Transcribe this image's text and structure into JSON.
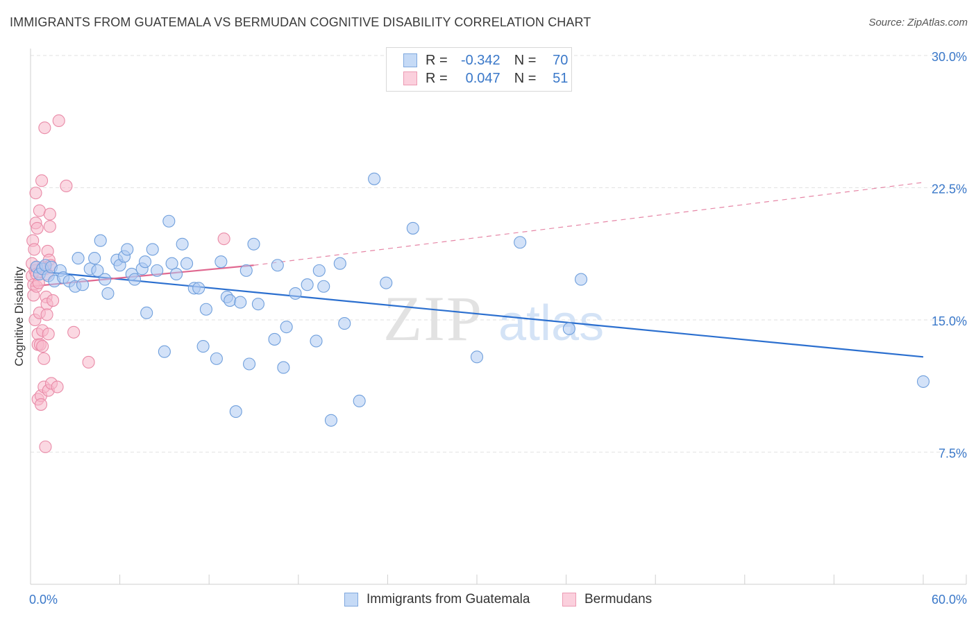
{
  "header": {
    "title": "IMMIGRANTS FROM GUATEMALA VS BERMUDAN COGNITIVE DISABILITY CORRELATION CHART",
    "source": "Source: ZipAtlas.com"
  },
  "watermark": {
    "part1": "ZIP",
    "part2": "atlas"
  },
  "legend": {
    "rows": [
      {
        "r_label": "R =",
        "r_value": "-0.342",
        "n_label": "N =",
        "n_value": "70",
        "color": "#aecbf2"
      },
      {
        "r_label": "R =",
        "r_value": "0.047",
        "n_label": "N =",
        "n_value": "51",
        "color": "#f7b8cb"
      }
    ]
  },
  "colors": {
    "blue_fill": "#aecbf2",
    "blue_stroke": "#6f9fdc",
    "blue_line": "#2b6fcf",
    "pink_fill": "#f7b8cb",
    "pink_stroke": "#e98aa7",
    "pink_line": "#e06890",
    "tick_label": "#3a78c9",
    "grid": "#e2e2e2"
  },
  "chart_data": {
    "type": "scatter",
    "xlabel": "",
    "ylabel": "Cognitive Disability",
    "xlim": [
      0,
      60
    ],
    "ylim": [
      0,
      30
    ],
    "x_tick_labels": [
      "0.0%",
      "60.0%"
    ],
    "y_ticks": [
      7.5,
      15.0,
      22.5,
      30.0
    ],
    "y_tick_labels": [
      "7.5%",
      "15.0%",
      "22.5%",
      "30.0%"
    ],
    "grid": true,
    "legend_position": "top-center",
    "series": [
      {
        "name": "Immigrants from Guatemala",
        "color": "#aecbf2",
        "trend": {
          "x": [
            0,
            60
          ],
          "y": [
            17.8,
            12.9
          ],
          "style": "solid"
        },
        "points": [
          [
            0.4,
            18.0
          ],
          [
            0.6,
            17.6
          ],
          [
            0.8,
            17.9
          ],
          [
            1.0,
            18.1
          ],
          [
            1.2,
            17.5
          ],
          [
            1.4,
            18.0
          ],
          [
            1.6,
            17.2
          ],
          [
            2.0,
            17.8
          ],
          [
            2.2,
            17.4
          ],
          [
            2.6,
            17.2
          ],
          [
            3.0,
            16.9
          ],
          [
            3.2,
            18.5
          ],
          [
            3.5,
            17.0
          ],
          [
            4.0,
            17.9
          ],
          [
            4.3,
            18.5
          ],
          [
            4.5,
            17.8
          ],
          [
            4.7,
            19.5
          ],
          [
            5.0,
            17.3
          ],
          [
            5.2,
            16.5
          ],
          [
            5.8,
            18.4
          ],
          [
            6.0,
            18.1
          ],
          [
            6.3,
            18.6
          ],
          [
            6.5,
            19.0
          ],
          [
            6.8,
            17.6
          ],
          [
            7.0,
            17.3
          ],
          [
            7.5,
            17.9
          ],
          [
            7.7,
            18.3
          ],
          [
            7.8,
            15.4
          ],
          [
            8.2,
            19.0
          ],
          [
            8.5,
            17.8
          ],
          [
            9.0,
            13.2
          ],
          [
            9.3,
            20.6
          ],
          [
            9.5,
            18.2
          ],
          [
            9.8,
            17.6
          ],
          [
            10.2,
            19.3
          ],
          [
            10.5,
            18.2
          ],
          [
            11.0,
            16.8
          ],
          [
            11.3,
            16.8
          ],
          [
            11.6,
            13.5
          ],
          [
            11.8,
            15.6
          ],
          [
            12.5,
            12.8
          ],
          [
            12.8,
            18.3
          ],
          [
            13.2,
            16.3
          ],
          [
            13.4,
            16.1
          ],
          [
            13.8,
            9.8
          ],
          [
            14.1,
            16.0
          ],
          [
            14.5,
            17.8
          ],
          [
            14.7,
            12.5
          ],
          [
            15.0,
            19.3
          ],
          [
            15.3,
            15.9
          ],
          [
            16.4,
            13.9
          ],
          [
            16.6,
            18.1
          ],
          [
            17.0,
            12.3
          ],
          [
            17.2,
            14.6
          ],
          [
            17.8,
            16.5
          ],
          [
            18.6,
            17.0
          ],
          [
            19.2,
            13.8
          ],
          [
            19.4,
            17.8
          ],
          [
            19.7,
            16.9
          ],
          [
            20.2,
            9.3
          ],
          [
            20.8,
            18.2
          ],
          [
            21.1,
            14.8
          ],
          [
            22.1,
            10.4
          ],
          [
            23.1,
            23.0
          ],
          [
            23.9,
            17.1
          ],
          [
            25.7,
            20.2
          ],
          [
            30.0,
            12.9
          ],
          [
            32.9,
            19.4
          ],
          [
            36.2,
            14.5
          ],
          [
            37.0,
            17.3
          ],
          [
            60.0,
            11.5
          ]
        ]
      },
      {
        "name": "Bermudans",
        "color": "#f7b8cb",
        "trend": {
          "x": [
            0,
            15
          ],
          "y": [
            16.9,
            18.1
          ],
          "style": "solid",
          "extended_to": [
            60,
            22.8
          ],
          "extension_style": "dashed"
        },
        "points": [
          [
            0.1,
            17.5
          ],
          [
            0.1,
            18.2
          ],
          [
            0.15,
            19.5
          ],
          [
            0.2,
            17.0
          ],
          [
            0.2,
            16.4
          ],
          [
            0.25,
            19.0
          ],
          [
            0.3,
            17.8
          ],
          [
            0.3,
            15.0
          ],
          [
            0.35,
            22.2
          ],
          [
            0.35,
            20.5
          ],
          [
            0.4,
            18.0
          ],
          [
            0.4,
            17.6
          ],
          [
            0.4,
            16.9
          ],
          [
            0.45,
            20.2
          ],
          [
            0.5,
            13.6
          ],
          [
            0.5,
            10.5
          ],
          [
            0.5,
            14.2
          ],
          [
            0.55,
            17.1
          ],
          [
            0.6,
            21.2
          ],
          [
            0.6,
            15.4
          ],
          [
            0.65,
            13.6
          ],
          [
            0.7,
            10.7
          ],
          [
            0.7,
            10.2
          ],
          [
            0.75,
            22.9
          ],
          [
            0.8,
            14.4
          ],
          [
            0.8,
            13.5
          ],
          [
            0.85,
            18.0
          ],
          [
            0.9,
            12.8
          ],
          [
            0.9,
            11.2
          ],
          [
            0.95,
            25.9
          ],
          [
            1.0,
            17.9
          ],
          [
            1.0,
            7.8
          ],
          [
            1.05,
            16.3
          ],
          [
            1.1,
            15.9
          ],
          [
            1.1,
            17.6
          ],
          [
            1.15,
            18.9
          ],
          [
            1.2,
            14.2
          ],
          [
            1.2,
            11.0
          ],
          [
            1.25,
            18.4
          ],
          [
            1.3,
            20.3
          ],
          [
            1.3,
            21.0
          ],
          [
            1.35,
            18.1
          ],
          [
            1.4,
            11.4
          ],
          [
            1.5,
            16.1
          ],
          [
            1.8,
            11.2
          ],
          [
            1.9,
            26.3
          ],
          [
            2.4,
            22.6
          ],
          [
            2.9,
            14.3
          ],
          [
            3.9,
            12.6
          ],
          [
            13.0,
            19.6
          ],
          [
            1.1,
            15.3
          ]
        ]
      }
    ]
  },
  "bottom_legend": {
    "items": [
      {
        "label": "Immigrants from Guatemala",
        "color": "#aecbf2"
      },
      {
        "label": "Bermudans",
        "color": "#f7b8cb"
      }
    ]
  }
}
